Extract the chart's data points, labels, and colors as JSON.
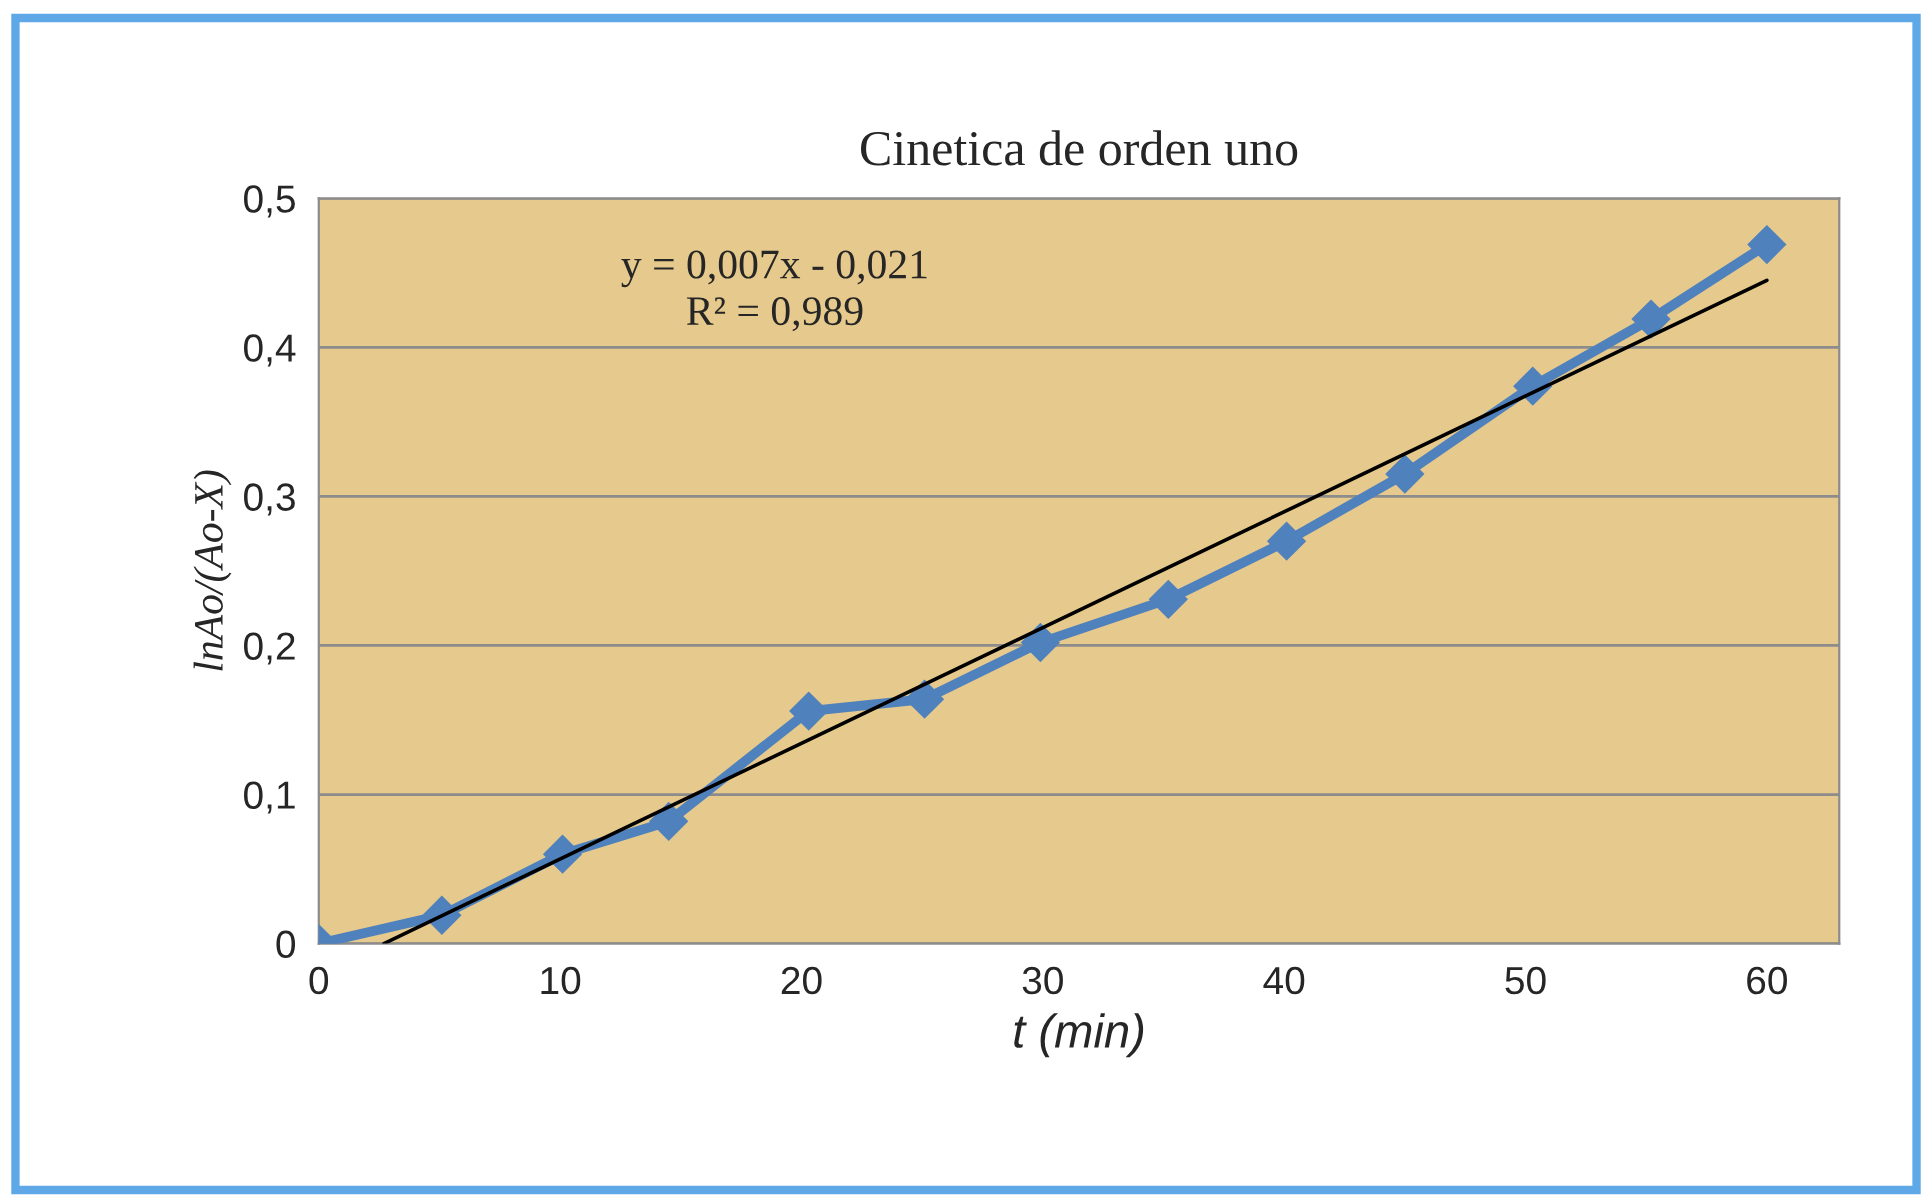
{
  "chart_data": {
    "type": "line",
    "title": "Cinetica de orden uno",
    "xlabel": "t (min)",
    "ylabel": "lnAo/(Ao-X)",
    "xlim": [
      0,
      63
    ],
    "xticks": [
      0,
      10,
      20,
      30,
      40,
      50,
      60
    ],
    "ylim": [
      0,
      0.5
    ],
    "yticks": [
      {
        "value": 0,
        "label": "0"
      },
      {
        "value": 0.1,
        "label": "0,1"
      },
      {
        "value": 0.2,
        "label": "0,2"
      },
      {
        "value": 0.3,
        "label": "0,3"
      },
      {
        "value": 0.4,
        "label": "0,4"
      },
      {
        "value": 0.5,
        "label": "0,5"
      }
    ],
    "grid": "y",
    "legend": false,
    "marker": "diamond",
    "line_style": "solid",
    "annotations": [
      "y = 0,007x - 0,021\nR² = 0,989"
    ],
    "series": [
      {
        "color": "#4f81bd",
        "x": [
          0,
          5.1,
          10.1,
          14.5,
          20.3,
          25.1,
          29.9,
          35.2,
          40.1,
          45,
          50.3,
          55.2,
          60
        ],
        "values": [
          0,
          0.019,
          0.06,
          0.082,
          0.156,
          0.164,
          0.202,
          0.231,
          0.27,
          0.315,
          0.374,
          0.419,
          0.469
        ]
      },
      {
        "type": "line",
        "color": "#000000",
        "marker": "none",
        "x": [
          2.7,
          60
        ],
        "values": [
          0,
          0.445
        ]
      }
    ]
  }
}
